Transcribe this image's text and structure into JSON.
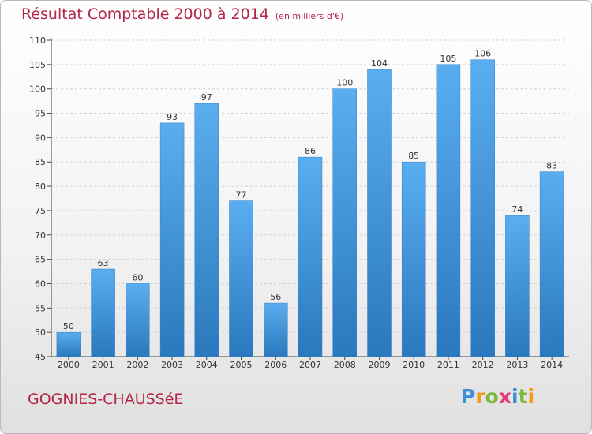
{
  "chart_data": {
    "type": "bar",
    "title": "Résultat Comptable 2000 à 2014",
    "subtitle": "(en milliers d'€)",
    "categories": [
      "2000",
      "2001",
      "2002",
      "2003",
      "2004",
      "2005",
      "2006",
      "2007",
      "2008",
      "2009",
      "2010",
      "2011",
      "2012",
      "2013",
      "2014"
    ],
    "values": [
      50,
      63,
      60,
      93,
      97,
      77,
      56,
      86,
      100,
      104,
      85,
      105,
      106,
      74,
      83
    ],
    "ylim": [
      45,
      110
    ],
    "yticks": [
      45,
      50,
      55,
      60,
      65,
      70,
      75,
      80,
      85,
      90,
      95,
      100,
      105,
      110
    ],
    "xlabel": "",
    "ylabel": "",
    "grid": true,
    "bar_color": "#3f93d8"
  },
  "footer": {
    "commune": "GOGNIES-CHAUSSéE",
    "logo": [
      "P",
      "r",
      "o",
      "x",
      "i",
      "t",
      "i"
    ]
  },
  "colors": {
    "title": "#b52547",
    "logo_letters": [
      "#3a8fd6",
      "#f39a12",
      "#7cb93a",
      "#e23d7a",
      "#3a8fd6",
      "#7cb93a",
      "#f39a12"
    ]
  }
}
